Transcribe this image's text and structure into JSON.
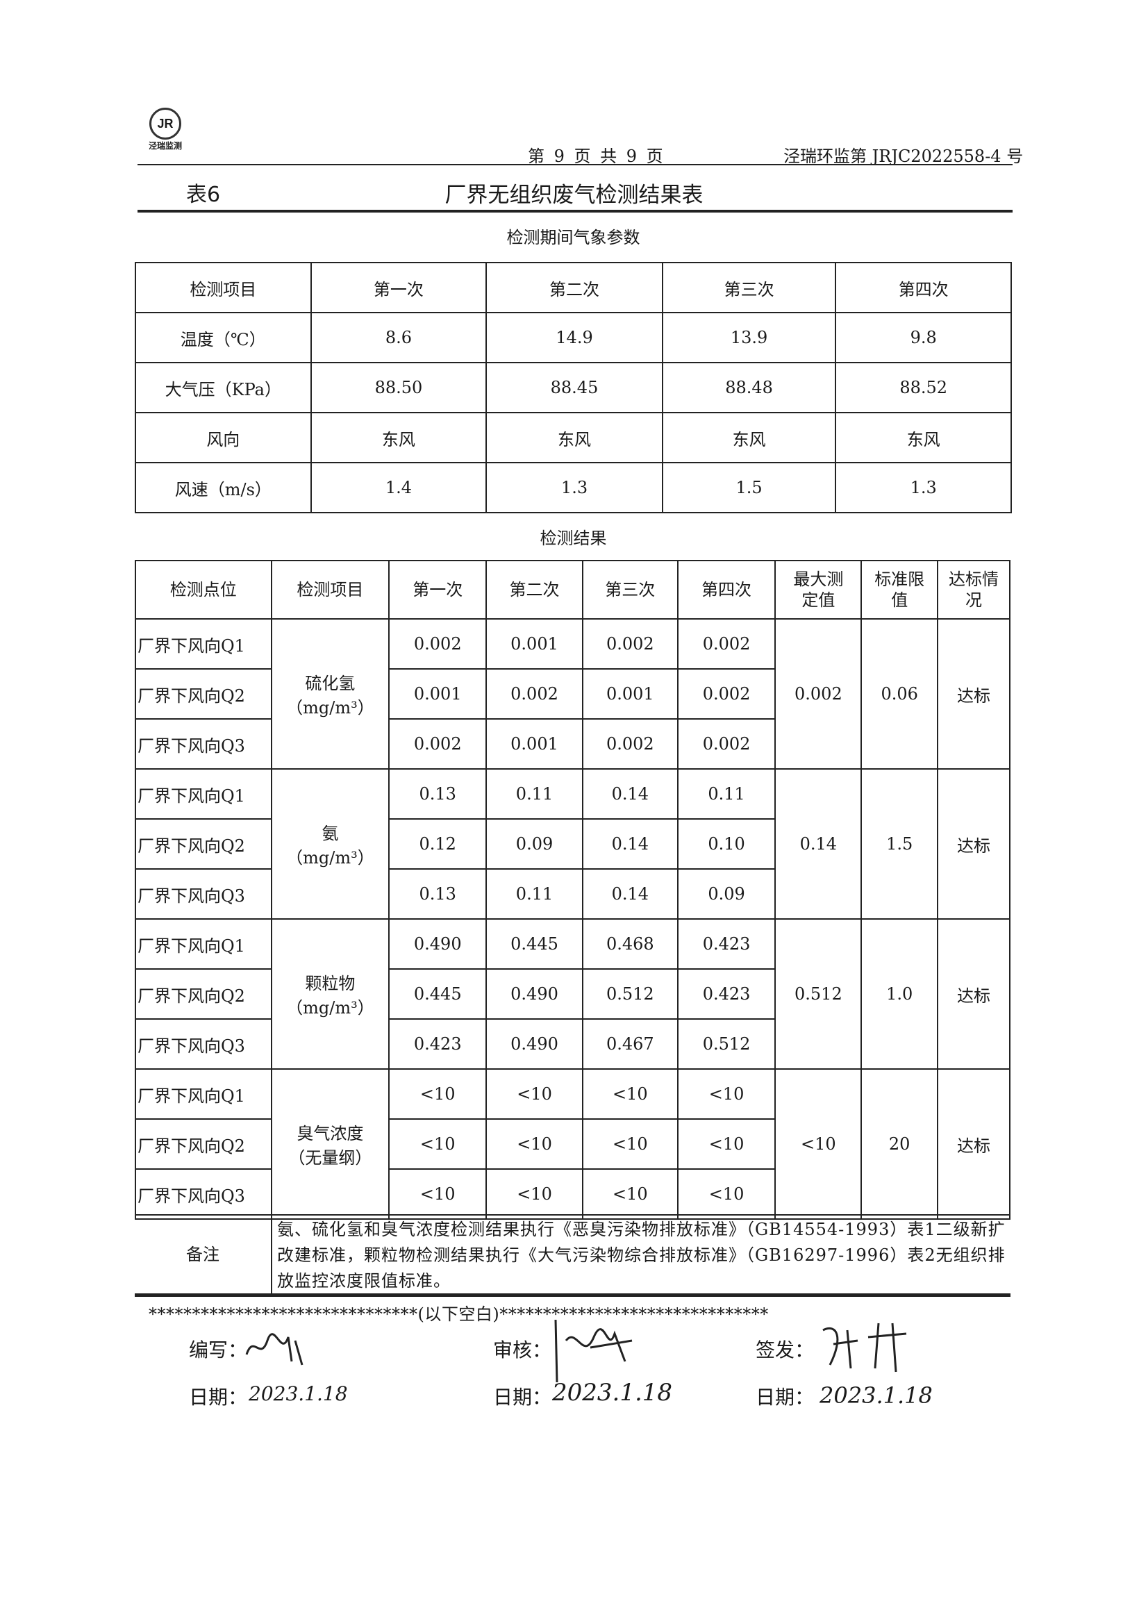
{
  "header": {
    "logo_text": "泾瑞监测",
    "page_info": "第 9 页 共 9 页",
    "doc_no": "泾瑞环监第 JRJC2022558-4 号"
  },
  "table_no": "表6",
  "title": "厂界无组织废气检测结果表",
  "weather": {
    "section_title": "检测期间气象参数",
    "columns": [
      "检测项目",
      "第一次",
      "第二次",
      "第三次",
      "第四次"
    ],
    "rows": [
      [
        "温度（℃）",
        "8.6",
        "14.9",
        "13.9",
        "9.8"
      ],
      [
        "大气压（KPa）",
        "88.50",
        "88.45",
        "88.48",
        "88.52"
      ],
      [
        "风向",
        "东风",
        "东风",
        "东风",
        "东风"
      ],
      [
        "风速（m/s）",
        "1.4",
        "1.3",
        "1.5",
        "1.3"
      ]
    ]
  },
  "results": {
    "section_title": "检测结果",
    "columns": [
      "检测点位",
      "检测项目",
      "第一次",
      "第二次",
      "第三次",
      "第四次",
      "最大测定值",
      "标准限值",
      "达标情况"
    ],
    "groups": [
      {
        "item": "硫化氢",
        "unit": "（mg/m³）",
        "max": "0.002",
        "limit": "0.06",
        "status": "达标",
        "rows": [
          [
            "厂界下风向Q1",
            "0.002",
            "0.001",
            "0.002",
            "0.002"
          ],
          [
            "厂界下风向Q2",
            "0.001",
            "0.002",
            "0.001",
            "0.002"
          ],
          [
            "厂界下风向Q3",
            "0.002",
            "0.001",
            "0.002",
            "0.002"
          ]
        ]
      },
      {
        "item": "氨",
        "unit": "（mg/m³）",
        "max": "0.14",
        "limit": "1.5",
        "status": "达标",
        "rows": [
          [
            "厂界下风向Q1",
            "0.13",
            "0.11",
            "0.14",
            "0.11"
          ],
          [
            "厂界下风向Q2",
            "0.12",
            "0.09",
            "0.14",
            "0.10"
          ],
          [
            "厂界下风向Q3",
            "0.13",
            "0.11",
            "0.14",
            "0.09"
          ]
        ]
      },
      {
        "item": "颗粒物",
        "unit": "（mg/m³）",
        "max": "0.512",
        "limit": "1.0",
        "status": "达标",
        "rows": [
          [
            "厂界下风向Q1",
            "0.490",
            "0.445",
            "0.468",
            "0.423"
          ],
          [
            "厂界下风向Q2",
            "0.445",
            "0.490",
            "0.512",
            "0.423"
          ],
          [
            "厂界下风向Q3",
            "0.423",
            "0.490",
            "0.467",
            "0.512"
          ]
        ]
      },
      {
        "item": "臭气浓度",
        "unit": "（无量纲）",
        "max": "<10",
        "limit": "20",
        "status": "达标",
        "rows": [
          [
            "厂界下风向Q1",
            "<10",
            "<10",
            "<10",
            "<10"
          ],
          [
            "厂界下风向Q2",
            "<10",
            "<10",
            "<10",
            "<10"
          ],
          [
            "厂界下风向Q3",
            "<10",
            "<10",
            "<10",
            "<10"
          ]
        ]
      }
    ]
  },
  "remark": {
    "label": "备注",
    "text": "氨、硫化氢和臭气浓度检测结果执行《恶臭污染物排放标准》（GB14554-1993）表1二级新扩改建标准，颗粒物检测结果执行《大气污染物综合排放标准》（GB16297-1996）表2无组织排放监控浓度限值标准。"
  },
  "end_marker": "*******************************(以下空白)*******************************",
  "signoff": {
    "prepared_label": "编写：",
    "reviewed_label": "审核：",
    "issued_label": "签发：",
    "date_label": "日期：",
    "prepared_date": "2023.1.18",
    "reviewed_date": "2023.1.18",
    "issued_date": "2023.1.18"
  }
}
